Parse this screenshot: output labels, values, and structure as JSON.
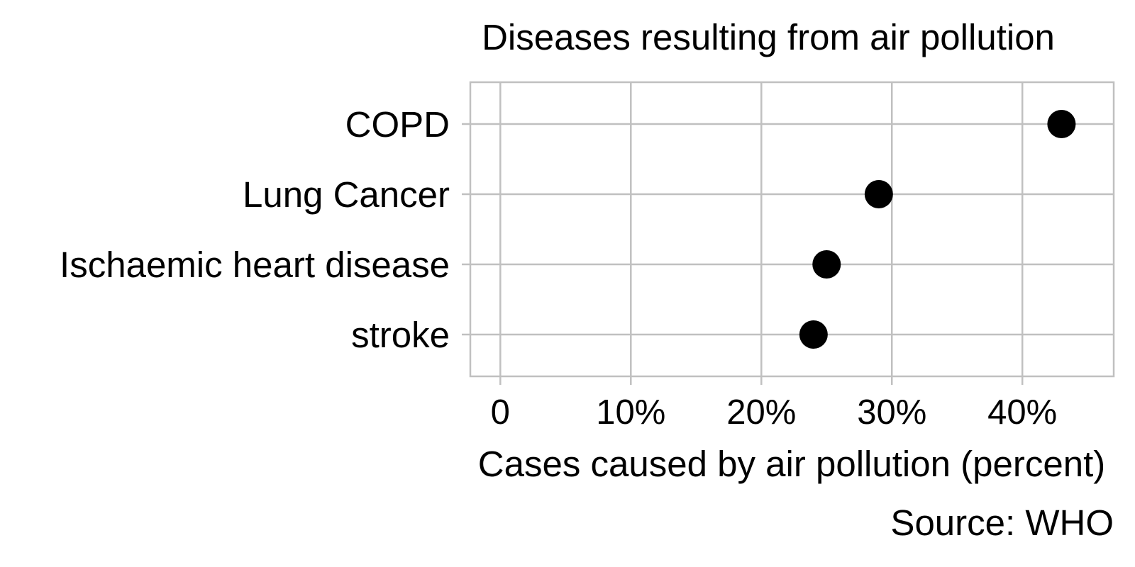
{
  "chart_data": {
    "type": "scatter",
    "title": "Diseases resulting from air pollution",
    "categories": [
      "COPD",
      "Lung Cancer",
      "Ischaemic heart disease",
      "stroke"
    ],
    "values": [
      43,
      29,
      25,
      24
    ],
    "xlabel": "Cases caused by air pollution (percent)",
    "ylabel": "",
    "xlim": [
      -2.3,
      47
    ],
    "x_ticks": [
      0,
      10,
      20,
      30,
      40
    ],
    "x_tick_labels": [
      "0",
      "10%",
      "20%",
      "30%",
      "40%"
    ],
    "grid": true,
    "caption": "Source: WHO",
    "colors": {
      "point": "#000000",
      "grid": "#c0c0c0",
      "panel_border": "#c0c0c0",
      "background": "#ffffff"
    }
  }
}
